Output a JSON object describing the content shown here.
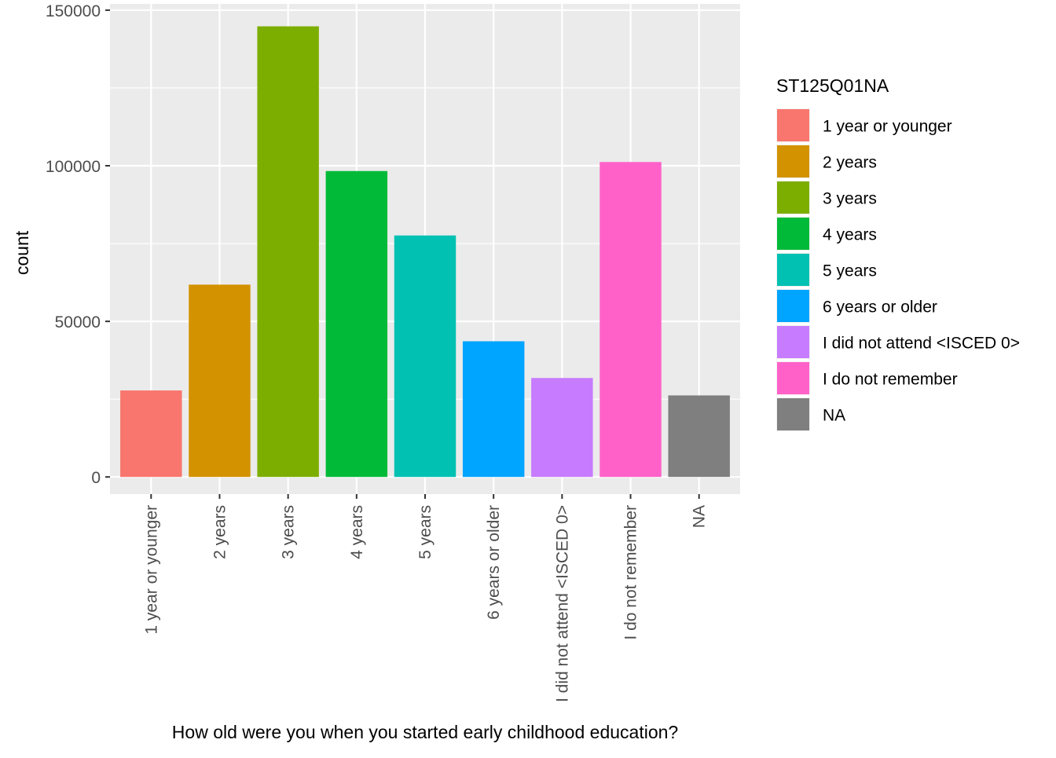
{
  "chart_data": {
    "type": "bar",
    "title": "",
    "xlabel": "How old were you when you started early childhood education?",
    "ylabel": "count",
    "ylim": [
      -5500,
      152000
    ],
    "yticks": [
      0,
      50000,
      100000,
      150000
    ],
    "ytick_labels": [
      "0",
      "50000",
      "100000",
      "150000"
    ],
    "grid": true,
    "categories": [
      "1 year or younger",
      "2 years",
      "3 years",
      "4 years",
      "5 years",
      "6 years or older",
      "I did not attend <ISCED 0>",
      "I do not remember",
      "NA"
    ],
    "values": [
      27800,
      61800,
      144800,
      98300,
      77600,
      43600,
      31800,
      101200,
      26200
    ],
    "colors": [
      "#F8766D",
      "#D39200",
      "#7CAE00",
      "#00BA38",
      "#00C1B2",
      "#00A5FF",
      "#C77CFF",
      "#FF61C9",
      "#7F7F7F"
    ],
    "legend": {
      "title": "ST125Q01NA",
      "placement": "right",
      "entries": [
        "1 year or younger",
        "2 years",
        "3 years",
        "4 years",
        "5 years",
        "6 years or older",
        "I did not attend <ISCED 0>",
        "I do not remember",
        "NA"
      ]
    },
    "panel_background": "#EBEBEB",
    "grid_color": "#FFFFFF"
  }
}
